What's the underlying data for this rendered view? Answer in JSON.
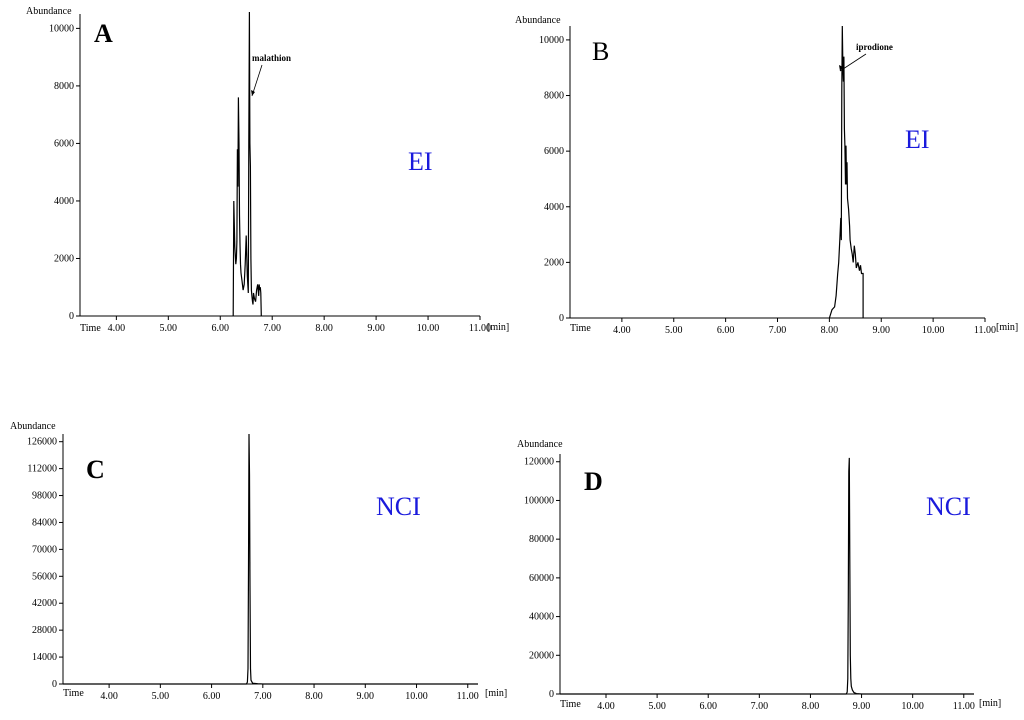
{
  "chart_data": [
    {
      "type": "line",
      "panel_label": "A",
      "mode": "EI",
      "ylabel": "Abundance",
      "xlabel_left": "Time",
      "xunit": "[min]",
      "xlim": [
        3.3,
        11.0
      ],
      "ylim": [
        0,
        10500
      ],
      "xticks": [
        4,
        5,
        6,
        7,
        8,
        9,
        10,
        11
      ],
      "xtick_labels": [
        "4.00",
        "5.00",
        "6.00",
        "7.00",
        "8.00",
        "9.00",
        "10.00",
        "11.00"
      ],
      "yticks": [
        0,
        2000,
        4000,
        6000,
        8000,
        10000
      ],
      "ytick_labels": [
        "0",
        "2000",
        "4000",
        "6000",
        "8000",
        "10000"
      ],
      "annotation": {
        "text": "malathion",
        "x": 6.6,
        "y": 7500
      },
      "series": [
        {
          "x": [
            6.25,
            6.26,
            6.27,
            6.28,
            6.29,
            6.3,
            6.31,
            6.32,
            6.33,
            6.34,
            6.35,
            6.36,
            6.37,
            6.38,
            6.39,
            6.4,
            6.42,
            6.44,
            6.46,
            6.48,
            6.5,
            6.52,
            6.54,
            6.55,
            6.56,
            6.57,
            6.58,
            6.59,
            6.6,
            6.61,
            6.62,
            6.63,
            6.64,
            6.66,
            6.68,
            6.7,
            6.72,
            6.74,
            6.75,
            6.76,
            6.77,
            6.78,
            6.79
          ],
          "y": [
            0,
            4000,
            3200,
            2400,
            2100,
            1800,
            2000,
            2600,
            5800,
            4500,
            7600,
            6000,
            3500,
            2500,
            1800,
            1500,
            1200,
            900,
            1100,
            1800,
            2800,
            1400,
            800,
            6000,
            10800,
            6000,
            5200,
            2000,
            900,
            700,
            500,
            400,
            800,
            600,
            500,
            900,
            1100,
            700,
            1100,
            900,
            1000,
            800,
            0
          ]
        }
      ]
    },
    {
      "type": "line",
      "panel_label": "B",
      "mode": "EI",
      "ylabel": "Abundance",
      "xlabel_left": "Time",
      "xunit": "[min]",
      "xlim": [
        3.0,
        11.0
      ],
      "ylim": [
        0,
        10500
      ],
      "xticks": [
        4,
        5,
        6,
        7,
        8,
        9,
        10,
        11
      ],
      "xtick_labels": [
        "4.00",
        "5.00",
        "6.00",
        "7.00",
        "8.00",
        "9.00",
        "10.00",
        "11.00"
      ],
      "yticks": [
        0,
        2000,
        4000,
        6000,
        8000,
        10000
      ],
      "ytick_labels": [
        "0",
        "2000",
        "4000",
        "6000",
        "8000",
        "10000"
      ],
      "annotation": {
        "text": "iprodione",
        "x": 8.3,
        "y": 9000
      },
      "series": [
        {
          "x": [
            8.0,
            8.05,
            8.1,
            8.13,
            8.16,
            8.18,
            8.2,
            8.21,
            8.22,
            8.23,
            8.24,
            8.25,
            8.26,
            8.27,
            8.28,
            8.29,
            8.3,
            8.31,
            8.32,
            8.33,
            8.34,
            8.35,
            8.37,
            8.39,
            8.4,
            8.42,
            8.44,
            8.46,
            8.48,
            8.5,
            8.52,
            8.55,
            8.58,
            8.6,
            8.62,
            8.65,
            8.65
          ],
          "y": [
            0,
            300,
            400,
            800,
            1600,
            2000,
            2800,
            3200,
            3600,
            2800,
            8200,
            10500,
            9000,
            8500,
            9400,
            6800,
            6200,
            4800,
            6200,
            4800,
            5600,
            4300,
            3900,
            3300,
            2800,
            2500,
            2300,
            2000,
            2600,
            2300,
            1800,
            2000,
            1700,
            1900,
            1600,
            1600,
            0
          ]
        }
      ]
    },
    {
      "type": "line",
      "panel_label": "C",
      "mode": "NCI",
      "ylabel": "Abundance",
      "xlabel_left": "Time",
      "xunit": "[min]",
      "xlim": [
        3.1,
        11.2
      ],
      "ylim": [
        0,
        130000
      ],
      "xticks": [
        4,
        5,
        6,
        7,
        8,
        9,
        10,
        11
      ],
      "xtick_labels": [
        "4.00",
        "5.00",
        "6.00",
        "7.00",
        "8.00",
        "9.00",
        "10.00",
        "11.00"
      ],
      "yticks": [
        0,
        14000,
        28000,
        42000,
        56000,
        70000,
        84000,
        98000,
        112000,
        126000
      ],
      "ytick_labels": [
        "0",
        "14000",
        "28000",
        "42000",
        "56000",
        "70000",
        "84000",
        "98000",
        "112000",
        "126000"
      ],
      "series": [
        {
          "x": [
            3.1,
            6.6,
            6.68,
            6.7,
            6.71,
            6.72,
            6.73,
            6.74,
            6.75,
            6.76,
            6.77,
            6.8,
            6.9,
            7.0,
            7.1,
            11.2
          ],
          "y": [
            0,
            0,
            0,
            1000,
            8000,
            60000,
            130000,
            109000,
            50000,
            8000,
            2000,
            400,
            150,
            0,
            0,
            0
          ]
        }
      ]
    },
    {
      "type": "line",
      "panel_label": "D",
      "mode": "NCI",
      "ylabel": "Abundance",
      "xlabel_left": "Time",
      "xunit": "[min]",
      "xlim": [
        3.1,
        11.2
      ],
      "ylim": [
        0,
        124000
      ],
      "xticks": [
        4,
        5,
        6,
        7,
        8,
        9,
        10,
        11
      ],
      "xtick_labels": [
        "4.00",
        "5.00",
        "6.00",
        "7.00",
        "8.00",
        "9.00",
        "10.00",
        "11.00"
      ],
      "yticks": [
        0,
        20000,
        40000,
        60000,
        80000,
        100000,
        120000
      ],
      "ytick_labels": [
        "0",
        "20000",
        "40000",
        "60000",
        "80000",
        "100000",
        "120000"
      ],
      "series": [
        {
          "x": [
            3.1,
            8.6,
            8.7,
            8.72,
            8.73,
            8.74,
            8.75,
            8.76,
            8.77,
            8.78,
            8.79,
            8.8,
            8.82,
            8.85,
            8.9,
            9.0,
            11.2
          ],
          "y": [
            0,
            0,
            0,
            1000,
            8000,
            50000,
            115000,
            122000,
            70000,
            20000,
            8000,
            4000,
            2000,
            800,
            200,
            0,
            0
          ]
        }
      ]
    }
  ]
}
